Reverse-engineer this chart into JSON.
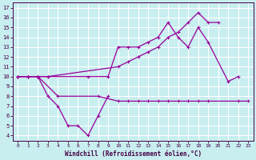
{
  "xlabel": "Windchill (Refroidissement éolien,°C)",
  "bg_color": "#c8eef0",
  "grid_color": "#ffffff",
  "line_color": "#990099",
  "xlim": [
    -0.5,
    23.5
  ],
  "ylim": [
    3.5,
    17.5
  ],
  "yticks": [
    4,
    5,
    6,
    7,
    8,
    9,
    10,
    11,
    12,
    13,
    14,
    15,
    16,
    17
  ],
  "xticks": [
    0,
    1,
    2,
    3,
    4,
    5,
    6,
    7,
    8,
    9,
    10,
    11,
    12,
    13,
    14,
    15,
    16,
    17,
    18,
    19,
    20,
    21,
    22,
    23
  ],
  "line1_x": [
    0,
    1,
    2,
    3,
    7,
    9,
    10,
    11,
    12,
    13,
    14,
    15,
    16,
    17,
    18,
    19,
    21,
    22
  ],
  "line1_y": [
    10,
    10,
    10,
    10,
    10,
    10,
    13,
    13,
    13,
    13.5,
    14,
    15.5,
    14,
    13,
    15,
    13.5,
    9.5,
    10
  ],
  "line2_x": [
    0,
    1,
    2,
    3,
    10,
    11,
    12,
    13,
    14,
    15,
    16,
    17,
    18,
    19,
    20
  ],
  "line2_y": [
    10,
    10,
    10,
    10,
    11,
    11.5,
    12,
    12.5,
    13,
    14,
    14.5,
    15.5,
    16.5,
    15.5,
    15.5
  ],
  "line3_x": [
    0,
    1,
    2,
    3,
    4,
    5,
    6,
    7,
    8,
    9
  ],
  "line3_y": [
    10,
    10,
    10,
    8,
    7,
    5,
    5,
    4,
    6,
    8
  ],
  "line4_x": [
    0,
    1,
    2,
    4,
    8,
    10,
    11,
    12,
    13,
    14,
    15,
    16,
    17,
    18,
    19,
    22,
    23
  ],
  "line4_y": [
    10,
    10,
    10,
    8,
    8,
    7.5,
    7.5,
    7.5,
    7.5,
    7.5,
    7.5,
    7.5,
    7.5,
    7.5,
    7.5,
    7.5,
    7.5
  ],
  "markersize": 2.5,
  "linewidth": 0.9
}
